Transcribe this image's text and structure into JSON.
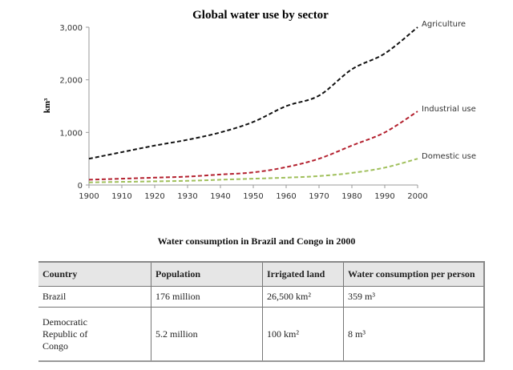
{
  "chart_data": {
    "type": "line",
    "title": "Global water use by sector",
    "ylabel": "km³",
    "xlabel": "",
    "x": [
      1900,
      1910,
      1920,
      1930,
      1940,
      1950,
      1960,
      1970,
      1980,
      1990,
      2000
    ],
    "xlim": [
      1900,
      2000
    ],
    "ylim": [
      0,
      3000
    ],
    "yticks": [
      0,
      1000,
      2000,
      3000
    ],
    "ytick_labels": [
      "0",
      "1,000",
      "2,000",
      "3,000"
    ],
    "xtick_labels": [
      "1900",
      "1910",
      "1920",
      "1930",
      "1940",
      "1950",
      "1960",
      "1970",
      "1980",
      "1990",
      "2000"
    ],
    "grid": false,
    "line_style": "dashed",
    "legend": "inline labels at line ends",
    "series": [
      {
        "name": "Agriculture",
        "color": "#111111",
        "values": [
          500,
          625,
          750,
          860,
          1000,
          1200,
          1500,
          1700,
          2200,
          2500,
          3000
        ]
      },
      {
        "name": "Industrial use",
        "color": "#b3202e",
        "values": [
          100,
          120,
          140,
          160,
          200,
          240,
          340,
          500,
          750,
          1000,
          1400
        ]
      },
      {
        "name": "Domestic use",
        "color": "#9fbf5a",
        "values": [
          50,
          60,
          70,
          80,
          100,
          120,
          140,
          170,
          230,
          330,
          500
        ]
      }
    ]
  },
  "table": {
    "title": "Water consumption in Brazil and Congo in 2000",
    "headers": [
      "Country",
      "Population",
      "Irrigated land",
      "Water consumption per person"
    ],
    "rows": [
      [
        "Brazil",
        "176 million",
        "26,500 km²",
        "359 m³"
      ],
      [
        "Democratic Republic of Congo",
        "5.2 million",
        "100 km²",
        "8 m³"
      ]
    ]
  }
}
